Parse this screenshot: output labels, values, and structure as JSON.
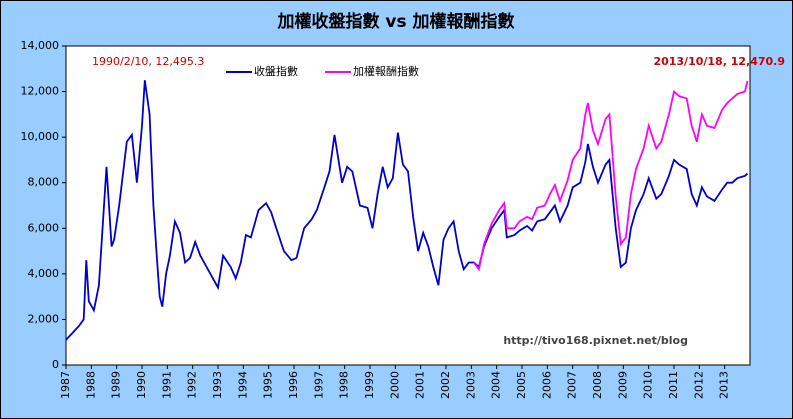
{
  "chart_data": {
    "type": "line",
    "title": "加權收盤指數 vs 加權報酬指數",
    "x": [
      1987.0,
      1987.5,
      1987.7,
      1987.8,
      1987.9,
      1988.1,
      1988.3,
      1988.6,
      1988.8,
      1988.9,
      1989.1,
      1989.4,
      1989.6,
      1989.8,
      1990.0,
      1990.11,
      1990.3,
      1990.45,
      1990.6,
      1990.7,
      1990.8,
      1990.95,
      1991.1,
      1991.3,
      1991.5,
      1991.7,
      1991.9,
      1992.1,
      1992.3,
      1992.6,
      1992.8,
      1993.0,
      1993.2,
      1993.5,
      1993.7,
      1993.9,
      1994.1,
      1994.3,
      1994.6,
      1994.9,
      1995.1,
      1995.3,
      1995.6,
      1995.9,
      1996.1,
      1996.4,
      1996.7,
      1996.9,
      1997.2,
      1997.4,
      1997.6,
      1997.9,
      1998.1,
      1998.3,
      1998.6,
      1998.9,
      1999.1,
      1999.3,
      1999.5,
      1999.7,
      1999.9,
      2000.1,
      2000.3,
      2000.5,
      2000.7,
      2000.9,
      2001.1,
      2001.3,
      2001.5,
      2001.7,
      2001.9,
      2002.1,
      2002.3,
      2002.5,
      2002.7,
      2002.9,
      2003.1,
      2003.3,
      2003.5,
      2003.8,
      2004.1,
      2004.3,
      2004.4,
      2004.7,
      2004.9,
      2005.2,
      2005.4,
      2005.6,
      2005.9,
      2006.1,
      2006.3,
      2006.5,
      2006.8,
      2007.0,
      2007.3,
      2007.5,
      2007.6,
      2007.8,
      2008.0,
      2008.3,
      2008.45,
      2008.7,
      2008.9,
      2009.1,
      2009.3,
      2009.5,
      2009.8,
      2010.0,
      2010.3,
      2010.5,
      2010.8,
      2011.0,
      2011.2,
      2011.5,
      2011.7,
      2011.9,
      2012.1,
      2012.3,
      2012.6,
      2012.9,
      2013.1,
      2013.3,
      2013.5,
      2013.8,
      2013.9
    ],
    "series": [
      {
        "name": "收盤指數",
        "color": "#0000cc",
        "values": [
          1100,
          1700,
          2000,
          4600,
          2800,
          2400,
          3500,
          8700,
          5200,
          5500,
          7000,
          9800,
          10100,
          8000,
          10500,
          12495.3,
          11000,
          7000,
          4500,
          3000,
          2560,
          4000,
          4800,
          6300,
          5800,
          4500,
          4700,
          5400,
          4800,
          4200,
          3800,
          3400,
          4800,
          4300,
          3800,
          4500,
          5700,
          5600,
          6800,
          7100,
          6700,
          6000,
          5000,
          4600,
          4700,
          6000,
          6400,
          6800,
          7800,
          8500,
          10100,
          8000,
          8700,
          8500,
          7000,
          6900,
          6000,
          7500,
          8700,
          7800,
          8200,
          10200,
          8800,
          8500,
          6500,
          5000,
          5800,
          5200,
          4300,
          3500,
          5500,
          6000,
          6300,
          5000,
          4200,
          4500,
          4500,
          4300,
          5200,
          6000,
          6500,
          6800,
          5600,
          5700,
          5900,
          6100,
          5900,
          6300,
          6400,
          6700,
          7000,
          6300,
          7000,
          7800,
          8000,
          8900,
          9700,
          8700,
          8000,
          8800,
          9000,
          6000,
          4300,
          4500,
          6000,
          6800,
          7500,
          8200,
          7300,
          7500,
          8300,
          9000,
          8800,
          8600,
          7500,
          7000,
          7800,
          7400,
          7200,
          7700,
          8000,
          8000,
          8200,
          8300,
          8400
        ]
      },
      {
        "name": "加權報酬指數",
        "color": "#ff00ff",
        "values": [
          null,
          null,
          null,
          null,
          null,
          null,
          null,
          null,
          null,
          null,
          null,
          null,
          null,
          null,
          null,
          null,
          null,
          null,
          null,
          null,
          null,
          null,
          null,
          null,
          null,
          null,
          null,
          null,
          null,
          null,
          null,
          null,
          null,
          null,
          null,
          null,
          null,
          null,
          null,
          null,
          null,
          null,
          null,
          null,
          null,
          null,
          null,
          null,
          null,
          null,
          null,
          null,
          null,
          null,
          null,
          null,
          null,
          null,
          null,
          null,
          null,
          null,
          null,
          null,
          null,
          null,
          null,
          null,
          null,
          null,
          null,
          null,
          null,
          null,
          null,
          null,
          4500,
          4200,
          5300,
          6200,
          6800,
          7100,
          6000,
          6000,
          6300,
          6500,
          6400,
          6900,
          7000,
          7500,
          7900,
          7200,
          8100,
          9000,
          9500,
          11000,
          11500,
          10300,
          9700,
          10800,
          11000,
          7400,
          5300,
          5600,
          7500,
          8600,
          9500,
          10500,
          9500,
          9800,
          11000,
          12000,
          11800,
          11700,
          10500,
          9800,
          11000,
          10500,
          10400,
          11200,
          11500,
          11700,
          11900,
          12000,
          12470.9
        ]
      }
    ],
    "xlim": [
      1987,
      2014
    ],
    "xticks": [
      1987,
      1988,
      1989,
      1990,
      1991,
      1992,
      1993,
      1994,
      1995,
      1996,
      1997,
      1998,
      1999,
      2000,
      2001,
      2002,
      2003,
      2004,
      2005,
      2006,
      2007,
      2008,
      2009,
      2010,
      2011,
      2012,
      2013
    ],
    "ylim": [
      0,
      14000
    ],
    "yticks": [
      0,
      {
        "value": 2000,
        "label": "2,000"
      },
      {
        "value": 4000,
        "label": "4,000"
      },
      {
        "value": 6000,
        "label": "6,000"
      },
      {
        "value": 8000,
        "label": "8,000"
      },
      {
        "value": 10000,
        "label": "10,000"
      },
      {
        "value": 12000,
        "label": "12,000"
      },
      {
        "value": 14000,
        "label": "14,000"
      }
    ],
    "annotations": [
      {
        "text": "1990/2/10, 12,495.3"
      },
      {
        "text": "2013/10/18, 12,470.9"
      },
      {
        "text": "http://tivo168.pixnet.net/blog"
      }
    ],
    "legend": "top"
  }
}
